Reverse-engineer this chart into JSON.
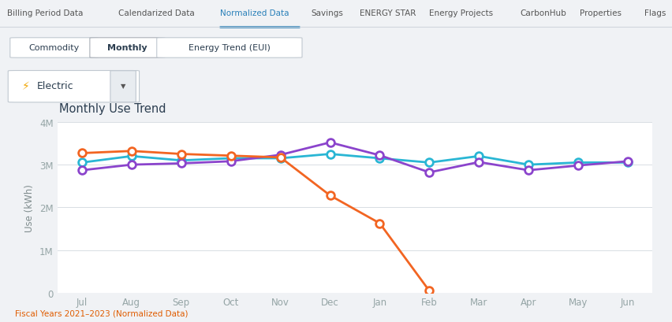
{
  "title": "Monthly Use Trend",
  "ylabel": "Use (kWh)",
  "footer": "Fiscal Years 2021–2023 (Normalized Data)",
  "months": [
    "Jul",
    "Aug",
    "Sep",
    "Oct",
    "Nov",
    "Dec",
    "Jan",
    "Feb",
    "Mar",
    "Apr",
    "May",
    "Jun"
  ],
  "series": {
    "2021": [
      3050000,
      3200000,
      3100000,
      3150000,
      3150000,
      3250000,
      3150000,
      3050000,
      3200000,
      3000000,
      3050000,
      3050000
    ],
    "2022": [
      2870000,
      3000000,
      3030000,
      3080000,
      3230000,
      3520000,
      3220000,
      2820000,
      3060000,
      2870000,
      2980000,
      3080000
    ],
    "2023": [
      3270000,
      3320000,
      3250000,
      3210000,
      3170000,
      2280000,
      1630000,
      50000,
      null,
      null,
      null,
      null
    ]
  },
  "colors": {
    "2021": "#29b6d4",
    "2022": "#8b44cc",
    "2023": "#f26522"
  },
  "ylim": [
    0,
    4000000
  ],
  "yticks": [
    0,
    1000000,
    2000000,
    3000000,
    4000000
  ],
  "ytick_labels": [
    "0",
    "1M",
    "2M",
    "3M",
    "4M"
  ],
  "bg_color": "#f0f2f5",
  "card_color": "#ffffff",
  "grid_color": "#d8dde3",
  "title_color": "#2c3e50",
  "axis_label_color": "#7f8c8d",
  "tick_color": "#95a5a6",
  "nav_bg": "#ffffff",
  "nav_tabs": [
    "Billing Period Data",
    "Calendarized Data",
    "Normalized Data",
    "Savings",
    "ENERGY STAR",
    "Energy Projects",
    "CarbonHub",
    "Properties",
    "Flags"
  ],
  "active_nav": "Normalized Data",
  "sub_tabs": [
    "Commodity",
    "Monthly",
    "Energy Trend (EUI)"
  ],
  "active_sub": "Monthly",
  "commodity_label": "Electric",
  "line_width": 2.0,
  "marker_size": 7,
  "marker_lw": 2.0
}
